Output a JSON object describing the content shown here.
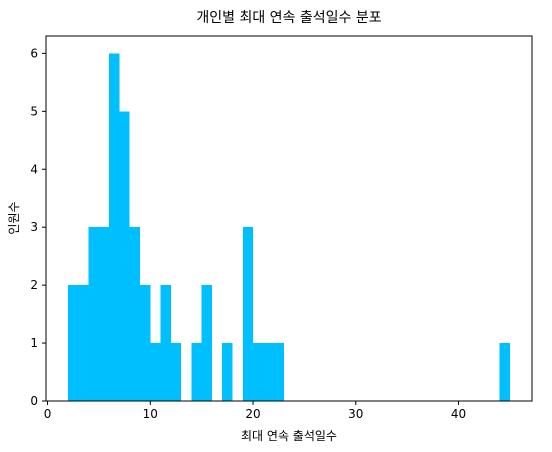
{
  "chart_data": {
    "type": "bar",
    "title": "개인별 최대 연속 출석일수 분포",
    "xlabel": "최대 연속 출석일수",
    "ylabel": "인원수",
    "xlim": [
      -0.15,
      47.15
    ],
    "ylim": [
      0,
      6.3
    ],
    "xticks": [
      0,
      10,
      20,
      30,
      40
    ],
    "yticks": [
      0,
      1,
      2,
      3,
      4,
      5,
      6
    ],
    "grid": false,
    "bar_color": "#00BFFF",
    "bins": [
      {
        "x0": 2.0,
        "x1": 3.0,
        "count": 2
      },
      {
        "x0": 3.0,
        "x1": 4.0,
        "count": 2
      },
      {
        "x0": 4.0,
        "x1": 5.0,
        "count": 3
      },
      {
        "x0": 5.0,
        "x1": 6.0,
        "count": 3
      },
      {
        "x0": 6.0,
        "x1": 7.0,
        "count": 6
      },
      {
        "x0": 7.0,
        "x1": 8.0,
        "count": 5
      },
      {
        "x0": 8.0,
        "x1": 9.0,
        "count": 3
      },
      {
        "x0": 9.0,
        "x1": 10.0,
        "count": 2
      },
      {
        "x0": 10.0,
        "x1": 11.0,
        "count": 1
      },
      {
        "x0": 11.0,
        "x1": 12.0,
        "count": 2
      },
      {
        "x0": 12.0,
        "x1": 13.0,
        "count": 1
      },
      {
        "x0": 14.0,
        "x1": 15.0,
        "count": 1
      },
      {
        "x0": 15.0,
        "x1": 16.0,
        "count": 2
      },
      {
        "x0": 17.0,
        "x1": 18.0,
        "count": 1
      },
      {
        "x0": 19.0,
        "x1": 20.0,
        "count": 3
      },
      {
        "x0": 20.0,
        "x1": 21.0,
        "count": 1
      },
      {
        "x0": 21.0,
        "x1": 22.0,
        "count": 1
      },
      {
        "x0": 22.0,
        "x1": 23.0,
        "count": 1
      },
      {
        "x0": 44.0,
        "x1": 45.0,
        "count": 1
      }
    ]
  }
}
